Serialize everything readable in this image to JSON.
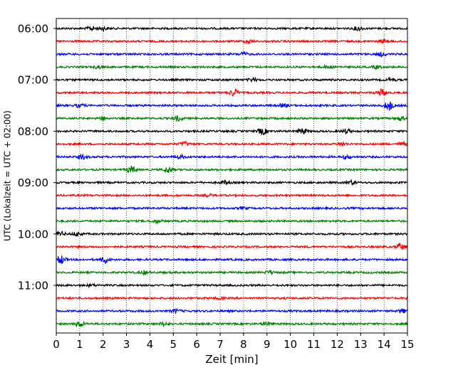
{
  "chart_data": {
    "type": "line",
    "title": "",
    "xlabel": "Zeit  [min]",
    "ylabel": "UTC (Lokalzeit = UTC + 02:00)",
    "xlim": [
      0,
      15
    ],
    "x_ticks": [
      "0",
      "1",
      "2",
      "3",
      "4",
      "5",
      "6",
      "7",
      "8",
      "9",
      "10",
      "11",
      "12",
      "13",
      "14",
      "15"
    ],
    "y_ticks": [
      "06:00",
      "07:00",
      "08:00",
      "09:00",
      "10:00",
      "11:00"
    ],
    "grid": "vertical dotted",
    "colors": [
      "#000000",
      "#ff0000",
      "#0000ff",
      "#008000"
    ],
    "traces": [
      {
        "start": "06:00",
        "color": "#000000",
        "bursts": [
          [
            1.5,
            1.2
          ],
          [
            2.0,
            1.0
          ],
          [
            12.9,
            1.3
          ]
        ]
      },
      {
        "start": "06:15",
        "color": "#ff0000",
        "bursts": [
          [
            8.2,
            1.0
          ],
          [
            14.0,
            1.0
          ]
        ]
      },
      {
        "start": "06:30",
        "color": "#0000ff",
        "bursts": [
          [
            8.0,
            1.0
          ],
          [
            13.9,
            1.0
          ]
        ]
      },
      {
        "start": "06:45",
        "color": "#008000",
        "bursts": [
          [
            1.8,
            0.8
          ],
          [
            11.6,
            0.9
          ],
          [
            13.7,
            0.9
          ]
        ]
      },
      {
        "start": "07:00",
        "color": "#000000",
        "bursts": [
          [
            8.4,
            0.9
          ],
          [
            14.3,
            0.9
          ]
        ]
      },
      {
        "start": "07:15",
        "color": "#ff0000",
        "bursts": [
          [
            7.6,
            2.0
          ],
          [
            13.9,
            2.2
          ]
        ]
      },
      {
        "start": "07:30",
        "color": "#0000ff",
        "bursts": [
          [
            1.0,
            1.0
          ],
          [
            14.2,
            2.8
          ],
          [
            9.7,
            1.0
          ]
        ]
      },
      {
        "start": "07:45",
        "color": "#008000",
        "bursts": [
          [
            5.2,
            1.5
          ],
          [
            14.7,
            1.2
          ],
          [
            2.0,
            1.0
          ]
        ]
      },
      {
        "start": "08:00",
        "color": "#000000",
        "bursts": [
          [
            8.8,
            2.0
          ],
          [
            10.5,
            1.7
          ],
          [
            12.4,
            1.2
          ]
        ]
      },
      {
        "start": "08:15",
        "color": "#ff0000",
        "bursts": [
          [
            5.5,
            1.2
          ],
          [
            12.2,
            1.0
          ],
          [
            14.8,
            1.0
          ]
        ]
      },
      {
        "start": "08:30",
        "color": "#0000ff",
        "bursts": [
          [
            1.1,
            1.2
          ],
          [
            5.3,
            1.0
          ],
          [
            12.4,
            1.0
          ]
        ]
      },
      {
        "start": "08:45",
        "color": "#008000",
        "bursts": [
          [
            3.2,
            2.0
          ],
          [
            4.8,
            1.8
          ]
        ]
      },
      {
        "start": "09:00",
        "color": "#000000",
        "bursts": [
          [
            7.2,
            1.0
          ],
          [
            12.6,
            1.2
          ]
        ]
      },
      {
        "start": "09:15",
        "color": "#ff0000",
        "bursts": [
          [
            6.5,
            0.6
          ]
        ]
      },
      {
        "start": "09:30",
        "color": "#0000ff",
        "bursts": [
          [
            8.0,
            0.6
          ]
        ]
      },
      {
        "start": "09:45",
        "color": "#008000",
        "bursts": [
          [
            4.3,
            1.0
          ]
        ]
      },
      {
        "start": "10:00",
        "color": "#000000",
        "bursts": [
          [
            0.2,
            1.2
          ],
          [
            0.9,
            1.3
          ]
        ]
      },
      {
        "start": "10:15",
        "color": "#ff0000",
        "bursts": [
          [
            14.7,
            2.0
          ]
        ]
      },
      {
        "start": "10:30",
        "color": "#0000ff",
        "bursts": [
          [
            0.2,
            2.5
          ],
          [
            2.1,
            2.0
          ]
        ]
      },
      {
        "start": "10:45",
        "color": "#008000",
        "bursts": [
          [
            3.8,
            1.0
          ],
          [
            9.1,
            1.0
          ]
        ]
      },
      {
        "start": "11:00",
        "color": "#000000",
        "bursts": [
          [
            1.5,
            0.6
          ]
        ]
      },
      {
        "start": "11:15",
        "color": "#ff0000",
        "bursts": [
          [
            7.0,
            0.5
          ]
        ]
      },
      {
        "start": "11:30",
        "color": "#0000ff",
        "bursts": [
          [
            5.1,
            0.9
          ],
          [
            14.8,
            1.0
          ]
        ]
      },
      {
        "start": "11:45",
        "color": "#008000",
        "bursts": [
          [
            1.0,
            1.8
          ],
          [
            9.0,
            1.0
          ],
          [
            4.6,
            1.0
          ]
        ]
      }
    ]
  }
}
